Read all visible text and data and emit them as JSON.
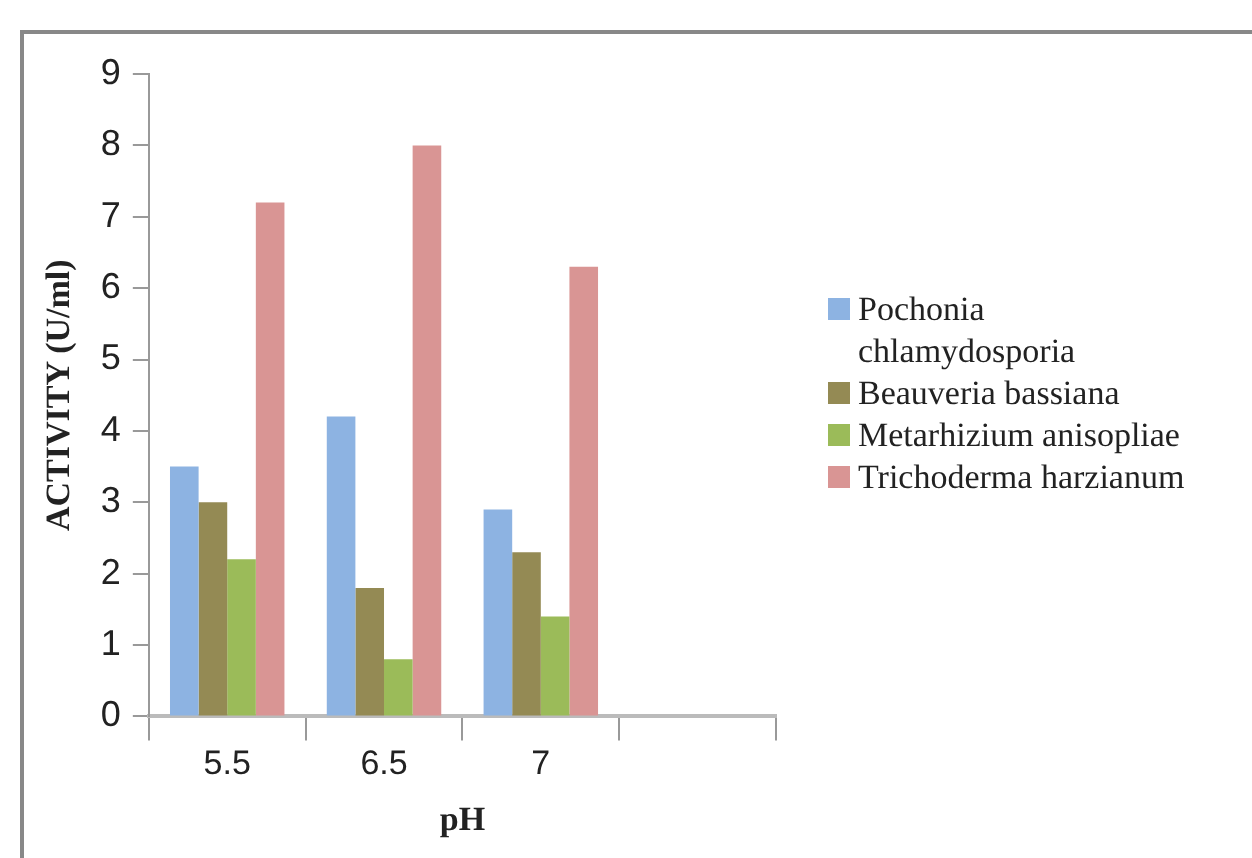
{
  "chart_data": {
    "type": "bar",
    "xlabel": "pH",
    "ylabel": "ACTIVITY (U/ml)",
    "categories": [
      "5.5",
      "6.5",
      "7",
      null
    ],
    "series": [
      {
        "name": "Pochonia chlamydosporia",
        "color": "#8db3e2",
        "values": [
          3.5,
          4.2,
          2.9,
          null
        ]
      },
      {
        "name": "Beauveria bassiana",
        "color": "#948a54",
        "values": [
          3.0,
          1.8,
          2.3,
          null
        ]
      },
      {
        "name": "Metarhizium anisopliae",
        "color": "#9bbb59",
        "values": [
          2.2,
          0.8,
          1.4,
          null
        ]
      },
      {
        "name": "Trichoderma harzianum",
        "color": "#d99594",
        "values": [
          7.2,
          8.0,
          6.3,
          null
        ]
      }
    ],
    "ylim": [
      0,
      9
    ],
    "yticks": [
      0,
      1,
      2,
      3,
      4,
      5,
      6,
      7,
      8,
      9
    ],
    "grid": false,
    "legend": "right"
  }
}
